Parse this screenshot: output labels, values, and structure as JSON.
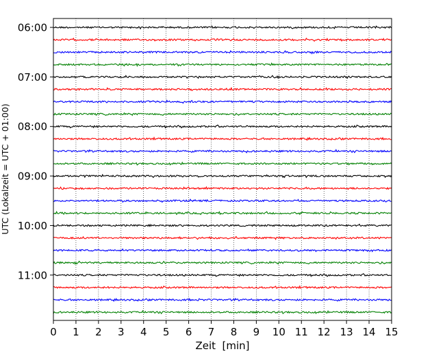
{
  "chart_data": {
    "type": "line",
    "title": "",
    "xlabel": "Zeit  [min]",
    "ylabel": "UTC (Lokalzeit = UTC + 01:00)",
    "xlim": [
      0,
      15
    ],
    "x_ticks": [
      "0",
      "1",
      "2",
      "3",
      "4",
      "5",
      "6",
      "7",
      "8",
      "9",
      "10",
      "11",
      "12",
      "13",
      "14",
      "15"
    ],
    "y_ticks": [
      "06:00",
      "07:00",
      "08:00",
      "09:00",
      "10:00",
      "11:00"
    ],
    "grid": {
      "vertical": true,
      "horizontal": false
    },
    "trace_interval_min": 15,
    "traces_start": "06:00",
    "traces_count": 24,
    "colors": [
      "#000000",
      "#ff0000",
      "#0000ff",
      "#008000"
    ],
    "legend": "none"
  }
}
